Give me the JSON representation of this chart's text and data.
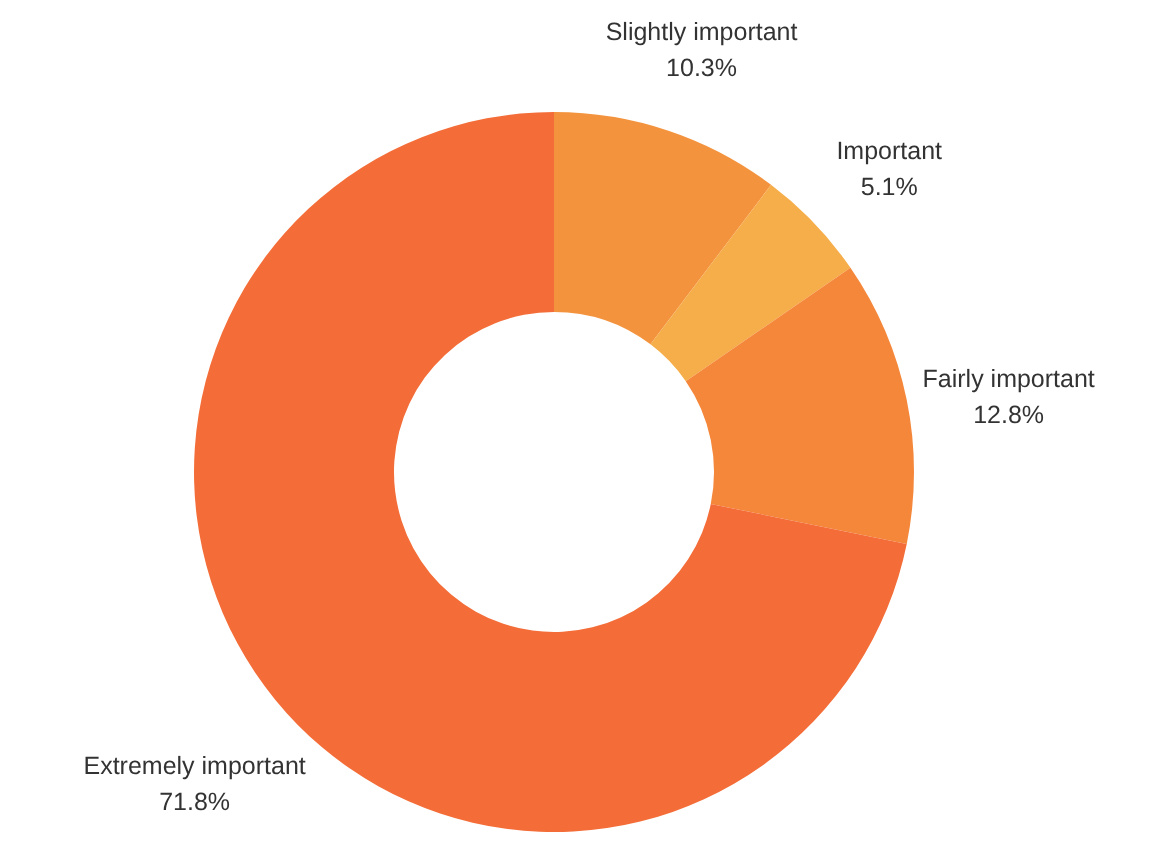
{
  "chart_data": {
    "type": "donut",
    "categories": [
      "Slightly important",
      "Important",
      "Fairly important",
      "Extremely important"
    ],
    "values": [
      10.3,
      5.1,
      12.8,
      71.8
    ],
    "colors": [
      "#f4933d",
      "#f6ae4b",
      "#f5873a",
      "#f46d38"
    ],
    "value_labels": [
      "10.3%",
      "5.1%",
      "12.8%",
      "71.8%"
    ],
    "legend": false
  }
}
